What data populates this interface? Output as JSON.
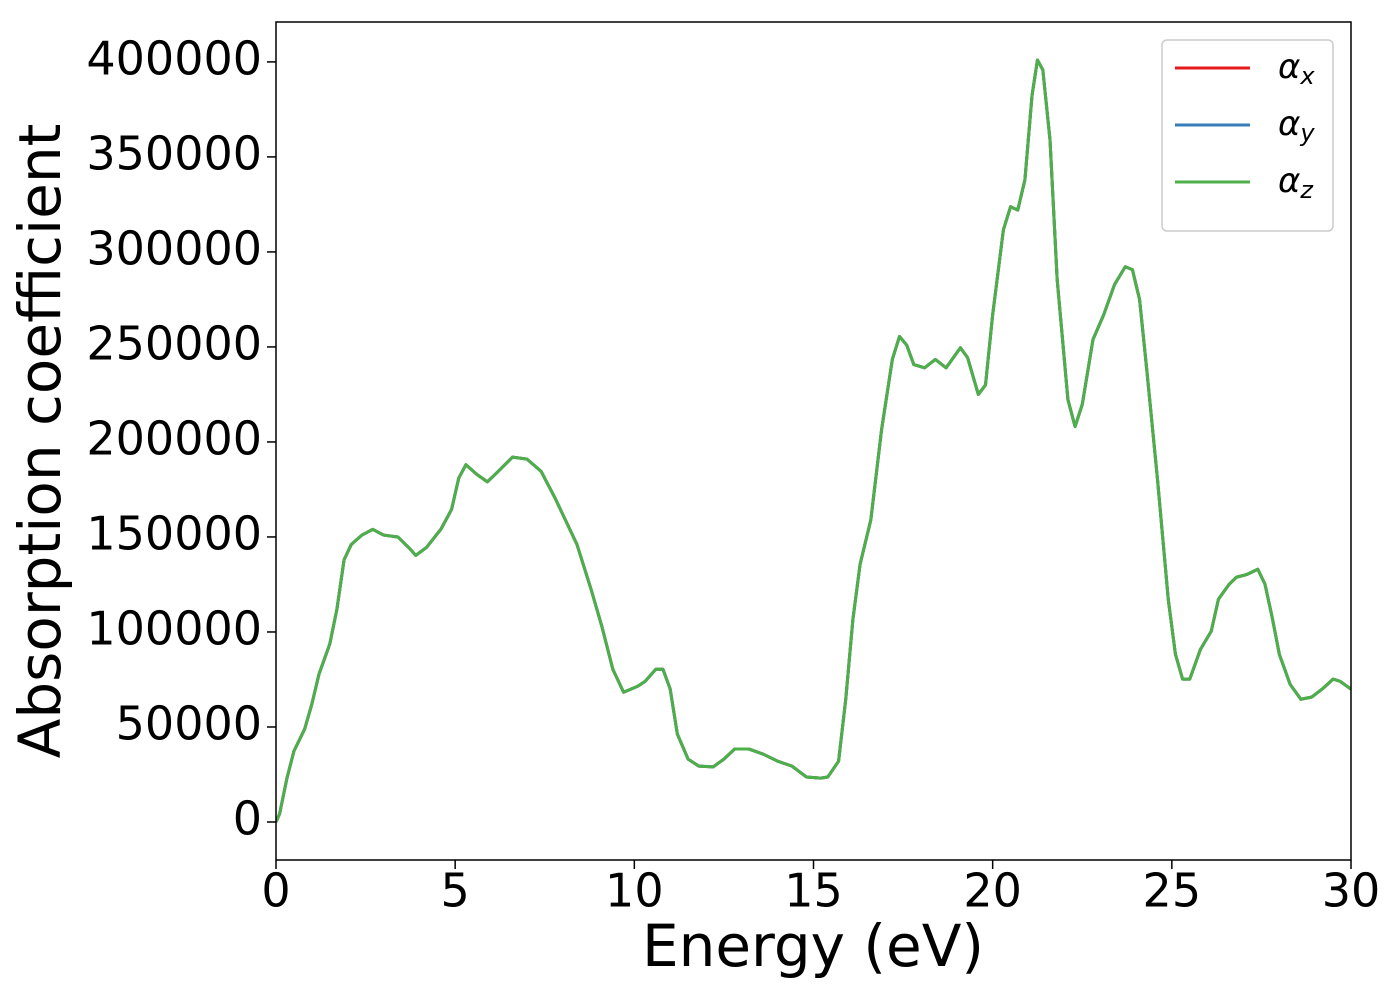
{
  "chart_data": {
    "type": "line",
    "xlabel": "Energy (eV)",
    "ylabel": "Absorption coefficient",
    "x": [
      0,
      0.1,
      0.3,
      0.5,
      0.8,
      1.0,
      1.2,
      1.5,
      1.7,
      1.9,
      2.1,
      2.4,
      2.7,
      3.0,
      3.4,
      3.7,
      3.9,
      4.2,
      4.6,
      4.9,
      5.1,
      5.3,
      5.6,
      5.9,
      6.2,
      6.6,
      7.0,
      7.4,
      7.8,
      8.1,
      8.4,
      8.8,
      9.1,
      9.4,
      9.7,
      10.1,
      10.3,
      10.6,
      10.8,
      11.0,
      11.2,
      11.5,
      11.8,
      12.2,
      12.5,
      12.8,
      13.2,
      13.6,
      14.0,
      14.4,
      14.8,
      15.2,
      15.4,
      15.7,
      15.9,
      16.1,
      16.3,
      16.6,
      16.9,
      17.2,
      17.4,
      17.6,
      17.8,
      18.1,
      18.4,
      18.7,
      19.1,
      19.3,
      19.6,
      19.8,
      20.0,
      20.3,
      20.5,
      20.7,
      20.9,
      21.1,
      21.25,
      21.4,
      21.6,
      21.8,
      22.1,
      22.3,
      22.5,
      22.8,
      23.1,
      23.4,
      23.7,
      23.9,
      24.1,
      24.3,
      24.6,
      24.9,
      25.1,
      25.3,
      25.5,
      25.8,
      26.1,
      26.3,
      26.6,
      26.8,
      27.1,
      27.4,
      27.6,
      27.8,
      28.0,
      28.3,
      28.6,
      28.9,
      29.2,
      29.5,
      29.7,
      30
    ],
    "series": [
      {
        "name": "αx",
        "color": "#e41a1c",
        "values": [
          0,
          4200,
          22600,
          37300,
          48900,
          62000,
          77800,
          93600,
          112000,
          138000,
          146000,
          151000,
          154000,
          151000,
          150000,
          144500,
          140300,
          144500,
          154000,
          164500,
          181000,
          188000,
          183000,
          179000,
          184500,
          192000,
          191000,
          184500,
          170000,
          158000,
          146000,
          122000,
          102500,
          80400,
          68300,
          71500,
          74000,
          80400,
          80400,
          70000,
          46300,
          33100,
          29400,
          29000,
          33100,
          38400,
          38400,
          35700,
          32000,
          29400,
          23700,
          23100,
          23700,
          32000,
          64600,
          106700,
          135600,
          159000,
          206500,
          243400,
          255500,
          251000,
          240700,
          239000,
          243400,
          239000,
          249600,
          244400,
          225000,
          230000,
          267000,
          311700,
          323800,
          322000,
          338000,
          382600,
          401000,
          395800,
          359000,
          285400,
          222300,
          208100,
          219700,
          253900,
          267000,
          282800,
          292200,
          290700,
          274900,
          238100,
          180300,
          117200,
          88300,
          75200,
          75200,
          90900,
          100400,
          117200,
          125100,
          128800,
          130300,
          133000,
          125100,
          107700,
          88300,
          72500,
          64600,
          65700,
          70000,
          75200,
          74000,
          69900
        ]
      },
      {
        "name": "αy",
        "color": "#377eb8",
        "values": [
          0,
          4200,
          22600,
          37300,
          48900,
          62000,
          77800,
          93600,
          112000,
          138000,
          146000,
          151000,
          154000,
          151000,
          150000,
          144500,
          140300,
          144500,
          154000,
          164500,
          181000,
          188000,
          183000,
          179000,
          184500,
          192000,
          191000,
          184500,
          170000,
          158000,
          146000,
          122000,
          102500,
          80400,
          68300,
          71500,
          74000,
          80400,
          80400,
          70000,
          46300,
          33100,
          29400,
          29000,
          33100,
          38400,
          38400,
          35700,
          32000,
          29400,
          23700,
          23100,
          23700,
          32000,
          64600,
          106700,
          135600,
          159000,
          206500,
          243400,
          255500,
          251000,
          240700,
          239000,
          243400,
          239000,
          249600,
          244400,
          225000,
          230000,
          267000,
          311700,
          323800,
          322000,
          338000,
          382600,
          401000,
          395800,
          359000,
          285400,
          222300,
          208100,
          219700,
          253900,
          267000,
          282800,
          292200,
          290700,
          274900,
          238100,
          180300,
          117200,
          88300,
          75200,
          75200,
          90900,
          100400,
          117200,
          125100,
          128800,
          130300,
          133000,
          125100,
          107700,
          88300,
          72500,
          64600,
          65700,
          70000,
          75200,
          74000,
          69900
        ]
      },
      {
        "name": "αz",
        "color": "#4daf4a",
        "values": [
          0,
          4200,
          22600,
          37300,
          48900,
          62000,
          77800,
          93600,
          112000,
          138000,
          146000,
          151000,
          154000,
          151000,
          150000,
          144500,
          140300,
          144500,
          154000,
          164500,
          181000,
          188000,
          183000,
          179000,
          184500,
          192000,
          191000,
          184500,
          170000,
          158000,
          146000,
          122000,
          102500,
          80400,
          68300,
          71500,
          74000,
          80400,
          80400,
          70000,
          46300,
          33100,
          29400,
          29000,
          33100,
          38400,
          38400,
          35700,
          32000,
          29400,
          23700,
          23100,
          23700,
          32000,
          64600,
          106700,
          135600,
          159000,
          206500,
          243400,
          255500,
          251000,
          240700,
          239000,
          243400,
          239000,
          249600,
          244400,
          225000,
          230000,
          267000,
          311700,
          323800,
          322000,
          338000,
          382600,
          401000,
          395800,
          359000,
          285400,
          222300,
          208100,
          219700,
          253900,
          267000,
          282800,
          292200,
          290700,
          274900,
          238100,
          180300,
          117200,
          88300,
          75200,
          75200,
          90900,
          100400,
          117200,
          125100,
          128800,
          130300,
          133000,
          125100,
          107700,
          88300,
          72500,
          64600,
          65700,
          70000,
          75200,
          74000,
          69900
        ]
      }
    ],
    "xlim": [
      0,
      30
    ],
    "xticks": [
      0,
      5,
      10,
      15,
      20,
      25,
      30
    ],
    "ylim": [
      -20000,
      421000
    ],
    "yticks": [
      0,
      50000,
      100000,
      150000,
      200000,
      250000,
      300000,
      350000,
      400000
    ],
    "grid": false,
    "legend": "upper right"
  }
}
